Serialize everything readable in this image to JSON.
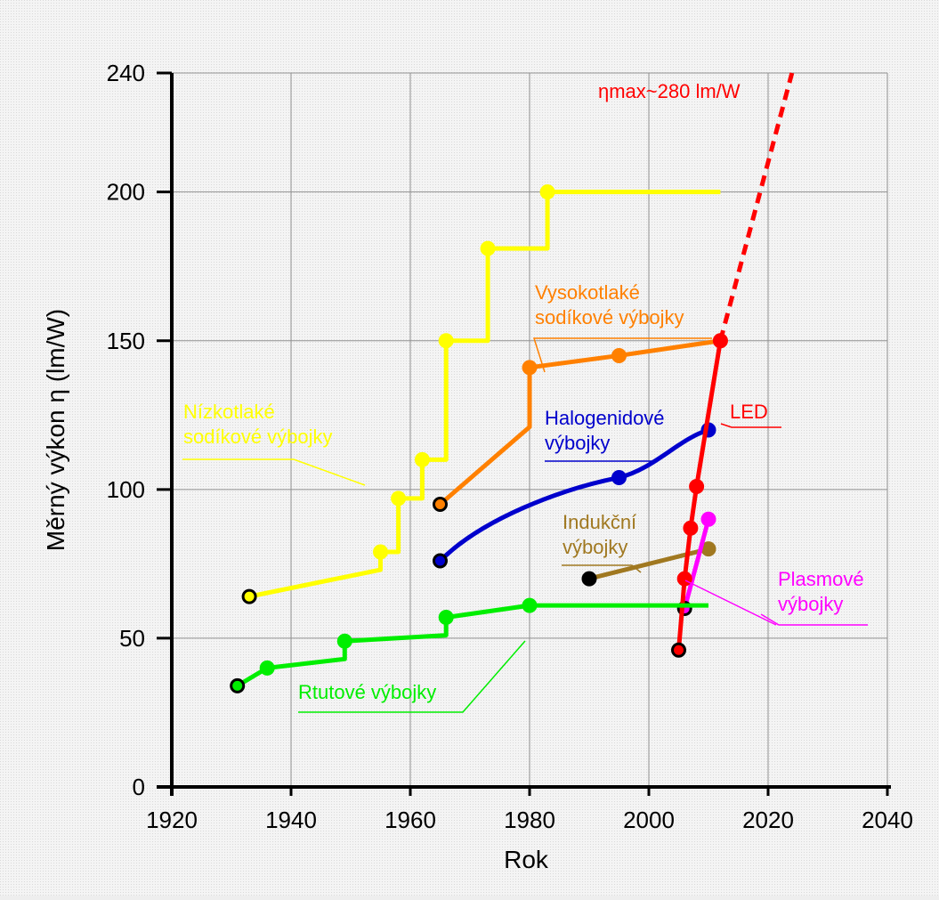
{
  "chart_data": {
    "type": "line",
    "title": "",
    "xlabel": "Rok",
    "ylabel": "Měrný výkon η (lm/W)",
    "xlim": [
      1920,
      2040
    ],
    "ylim": [
      0,
      240
    ],
    "xticks": [
      1920,
      1940,
      1960,
      1980,
      2000,
      2020,
      2040
    ],
    "yticks": [
      0,
      50,
      100,
      150,
      200,
      240
    ],
    "grid": true,
    "annotation": "ηmax~280 lm/W",
    "series": [
      {
        "name": "Nízkotlaké sodíkové výbojky",
        "color": "#ffff00",
        "step": true,
        "points": [
          [
            1933,
            64
          ],
          [
            1955,
            79
          ],
          [
            1958,
            97
          ],
          [
            1962,
            110
          ],
          [
            1966,
            150
          ],
          [
            1973,
            181
          ],
          [
            1983,
            200
          ]
        ],
        "line_end": 2012
      },
      {
        "name": "Vysokotlaké sodíkové výbojky",
        "color": "#ff8000",
        "points": [
          [
            1965,
            95
          ],
          [
            1980,
            141
          ],
          [
            1995,
            145
          ],
          [
            2012,
            150
          ]
        ]
      },
      {
        "name": "Halogenidové výbojky",
        "color": "#0000cc",
        "points": [
          [
            1965,
            76
          ],
          [
            1995,
            104
          ],
          [
            2010,
            120
          ]
        ]
      },
      {
        "name": "Indukční výbojky",
        "color": "#a07820",
        "points": [
          [
            1990,
            70
          ],
          [
            2010,
            80
          ]
        ]
      },
      {
        "name": "Plasmové výbojky",
        "color": "#ff00ff",
        "points": [
          [
            2006,
            60
          ],
          [
            2010,
            90
          ]
        ]
      },
      {
        "name": "LED",
        "color": "#ff0000",
        "points": [
          [
            2005,
            46
          ],
          [
            2006,
            70
          ],
          [
            2007,
            87
          ],
          [
            2008,
            101
          ],
          [
            2012,
            150
          ]
        ],
        "extrapolation_end": [
          2024,
          240
        ]
      },
      {
        "name": "Rtutové výbojky",
        "color": "#00ee00",
        "points": [
          [
            1931,
            34
          ],
          [
            1936,
            40
          ],
          [
            1949,
            49
          ],
          [
            1966,
            57
          ],
          [
            1980,
            61
          ]
        ],
        "line_end": 2010
      }
    ]
  }
}
